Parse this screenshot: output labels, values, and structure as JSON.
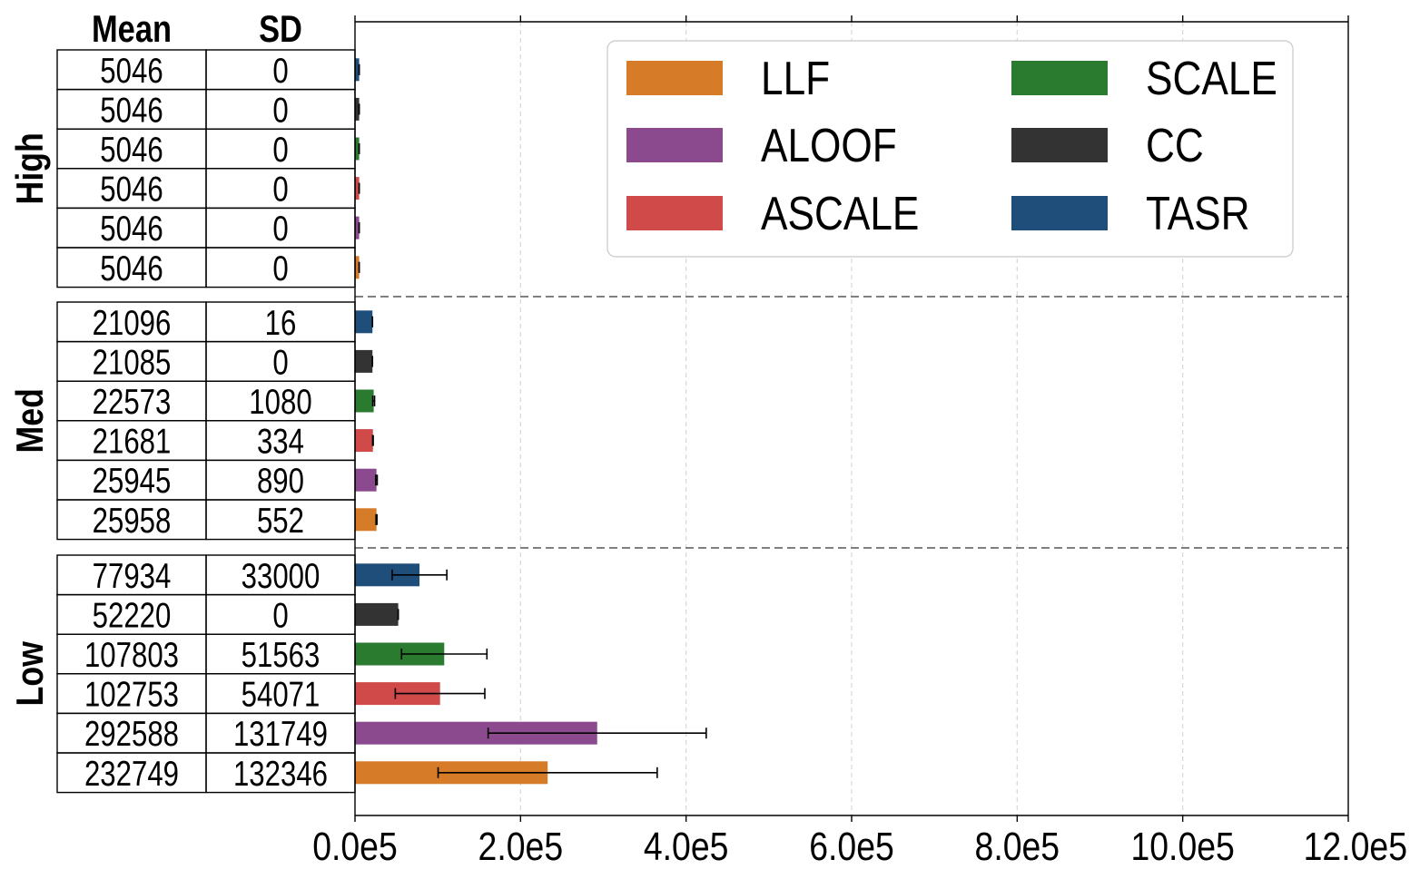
{
  "chart_data": {
    "type": "bar",
    "orientation": "horizontal",
    "xlim": [
      0,
      1200000
    ],
    "x_ticks": [
      0,
      200000,
      400000,
      600000,
      800000,
      1000000,
      1200000
    ],
    "x_tick_labels": [
      "0.0e5",
      "2.0e5",
      "4.0e5",
      "6.0e5",
      "8.0e5",
      "10.0e5",
      "12.0e5"
    ],
    "grid": "x, dashed",
    "table_headers": [
      "Mean",
      "SD"
    ],
    "legend_position": "top-right",
    "legend": [
      {
        "name": "LLF",
        "color": "#d67b27"
      },
      {
        "name": "SCALE",
        "color": "#2a7a30"
      },
      {
        "name": "ALOOF",
        "color": "#8b4a8e"
      },
      {
        "name": "CC",
        "color": "#333333"
      },
      {
        "name": "ASCALE",
        "color": "#d04a4a"
      },
      {
        "name": "TASR",
        "color": "#1f4e7a"
      }
    ],
    "groups": [
      {
        "name": "High",
        "rows": [
          {
            "series": "TASR",
            "color": "#1f4e7a",
            "mean": 5046,
            "sd": 0,
            "mean_label": "5046",
            "sd_label": "0"
          },
          {
            "series": "CC",
            "color": "#333333",
            "mean": 5046,
            "sd": 0,
            "mean_label": "5046",
            "sd_label": "0"
          },
          {
            "series": "SCALE",
            "color": "#2a7a30",
            "mean": 5046,
            "sd": 0,
            "mean_label": "5046",
            "sd_label": "0"
          },
          {
            "series": "ASCALE",
            "color": "#d04a4a",
            "mean": 5046,
            "sd": 0,
            "mean_label": "5046",
            "sd_label": "0"
          },
          {
            "series": "ALOOF",
            "color": "#8b4a8e",
            "mean": 5046,
            "sd": 0,
            "mean_label": "5046",
            "sd_label": "0"
          },
          {
            "series": "LLF",
            "color": "#d67b27",
            "mean": 5046,
            "sd": 0,
            "mean_label": "5046",
            "sd_label": "0"
          }
        ]
      },
      {
        "name": "Med",
        "rows": [
          {
            "series": "TASR",
            "color": "#1f4e7a",
            "mean": 21096,
            "sd": 16,
            "mean_label": "21096",
            "sd_label": "16"
          },
          {
            "series": "CC",
            "color": "#333333",
            "mean": 21085,
            "sd": 0,
            "mean_label": "21085",
            "sd_label": "0"
          },
          {
            "series": "SCALE",
            "color": "#2a7a30",
            "mean": 22573,
            "sd": 1080,
            "mean_label": "22573",
            "sd_label": "1080"
          },
          {
            "series": "ASCALE",
            "color": "#d04a4a",
            "mean": 21681,
            "sd": 334,
            "mean_label": "21681",
            "sd_label": "334"
          },
          {
            "series": "ALOOF",
            "color": "#8b4a8e",
            "mean": 25945,
            "sd": 890,
            "mean_label": "25945",
            "sd_label": "890"
          },
          {
            "series": "LLF",
            "color": "#d67b27",
            "mean": 25958,
            "sd": 552,
            "mean_label": "25958",
            "sd_label": "552"
          }
        ]
      },
      {
        "name": "Low",
        "rows": [
          {
            "series": "TASR",
            "color": "#1f4e7a",
            "mean": 77934,
            "sd": 33000,
            "mean_label": "77934",
            "sd_label": "33000"
          },
          {
            "series": "CC",
            "color": "#333333",
            "mean": 52220,
            "sd": 0,
            "mean_label": "52220",
            "sd_label": "0"
          },
          {
            "series": "SCALE",
            "color": "#2a7a30",
            "mean": 107803,
            "sd": 51563,
            "mean_label": "107803",
            "sd_label": "51563"
          },
          {
            "series": "ASCALE",
            "color": "#d04a4a",
            "mean": 102753,
            "sd": 54071,
            "mean_label": "102753",
            "sd_label": "54071"
          },
          {
            "series": "ALOOF",
            "color": "#8b4a8e",
            "mean": 292588,
            "sd": 131749,
            "mean_label": "292588",
            "sd_label": "131749"
          },
          {
            "series": "LLF",
            "color": "#d67b27",
            "mean": 232749,
            "sd": 132346,
            "mean_label": "232749",
            "sd_label": "132346"
          }
        ]
      }
    ]
  }
}
